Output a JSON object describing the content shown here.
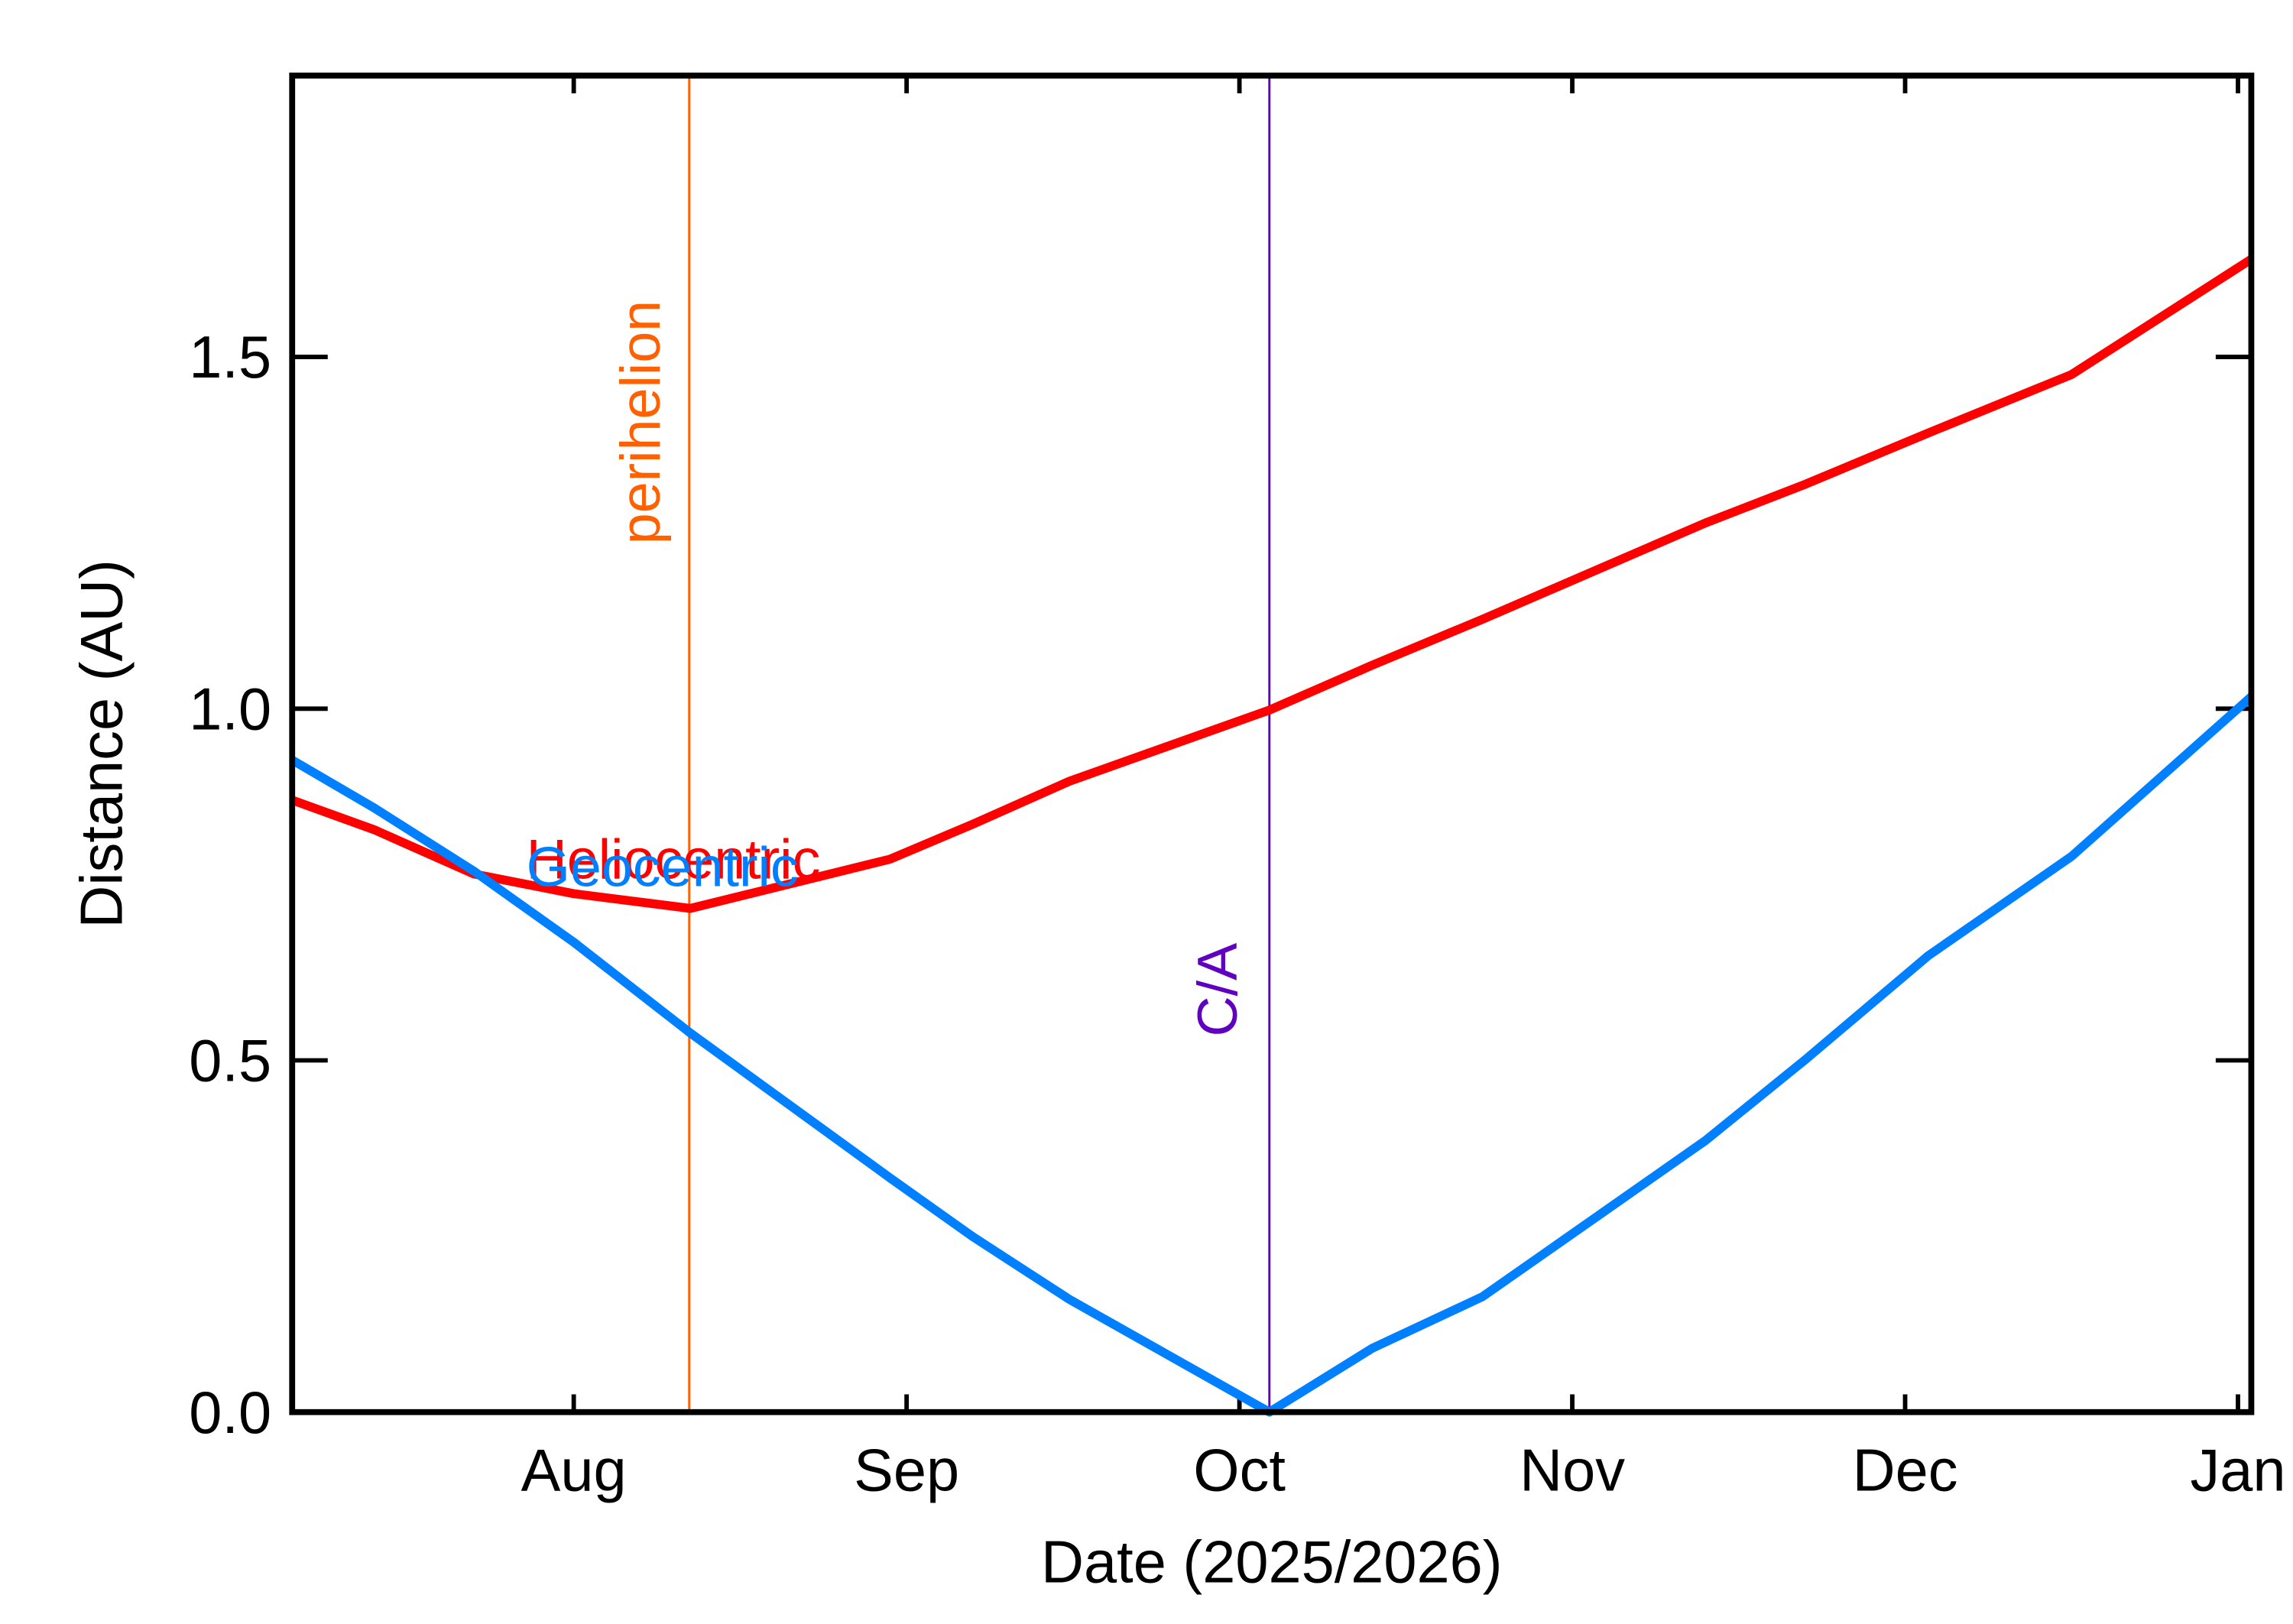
{
  "chart_data": {
    "type": "line",
    "xlabel": "Date (2025/2026)",
    "ylabel": "Distance (AU)",
    "x": [
      7.154,
      7.4,
      7.7,
      8.0,
      8.35,
      8.95,
      9.2,
      9.49,
      10.09,
      10.4,
      10.73,
      11.4,
      11.7,
      12.07,
      12.5,
      13.04
    ],
    "series": [
      {
        "name": "Heliocentric",
        "color": "#ff0000",
        "values": [
          0.87,
          0.828,
          0.765,
          0.737,
          0.716,
          0.786,
          0.836,
          0.897,
          0.998,
          1.062,
          1.127,
          1.264,
          1.319,
          1.392,
          1.475,
          1.639
        ]
      },
      {
        "name": "Geocentric",
        "color": "#0080ff",
        "values": [
          0.927,
          0.859,
          0.769,
          0.668,
          0.539,
          0.333,
          0.249,
          0.16,
          0.0,
          0.091,
          0.164,
          0.386,
          0.501,
          0.649,
          0.79,
          1.017
        ]
      }
    ],
    "vlines": [
      {
        "x": 8.347,
        "label": "perihelion",
        "color": "#ff6000"
      },
      {
        "x": 10.09,
        "label": "C/A",
        "color": "#6000c0"
      }
    ],
    "xlim": [
      7.154,
      13.04
    ],
    "xticks": [
      {
        "value": 8,
        "label": "Aug"
      },
      {
        "value": 9,
        "label": "Sep"
      },
      {
        "value": 10,
        "label": "Oct"
      },
      {
        "value": 11,
        "label": "Nov"
      },
      {
        "value": 12,
        "label": "Dec"
      },
      {
        "value": 13,
        "label": "Jan"
      }
    ],
    "ylim": [
      0,
      1.9
    ],
    "yticks": [
      {
        "value": 0,
        "label": "0.0"
      },
      {
        "value": 0.5,
        "label": "0.5"
      },
      {
        "value": 1,
        "label": "1.0"
      },
      {
        "value": 1.5,
        "label": "1.5"
      }
    ]
  }
}
